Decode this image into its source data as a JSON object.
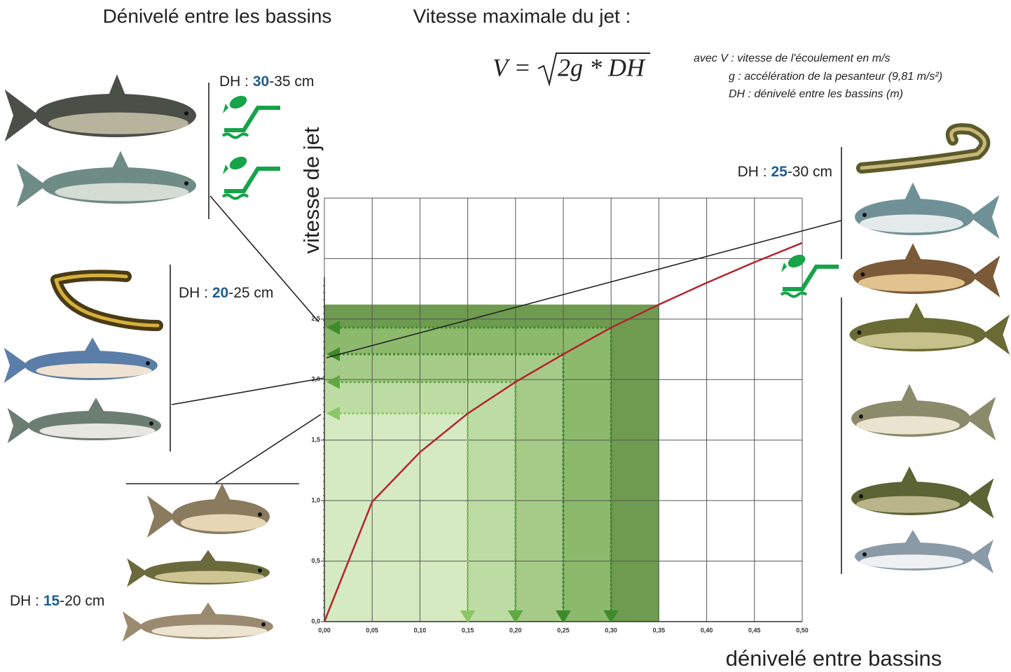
{
  "header": {
    "left_title": "Dénivelé entre les bassins",
    "right_title": "Vitesse maximale du jet :"
  },
  "formula": {
    "lhs": "V =",
    "radicand": "2g * DH"
  },
  "notes": [
    "avec V : vitesse de l'écoulement en m/s",
    "g : accélération de la pesanteur (9,81 m/s²)",
    "DH : dénivelé entre les bassins (m)"
  ],
  "groups": [
    {
      "prefix": "DH : ",
      "low": "30",
      "rest": "-35 cm"
    },
    {
      "prefix": "DH : ",
      "low": "20",
      "rest": "-25 cm"
    },
    {
      "prefix": "DH : ",
      "low": "15",
      "rest": "-20 cm"
    },
    {
      "prefix": "DH : ",
      "low": "25",
      "rest": "-30 cm"
    }
  ],
  "chart_data": {
    "type": "line",
    "y_label": "vitesse de jet",
    "x_label": "dénivelé entre bassins",
    "x": [
      0,
      0.05,
      0.1,
      0.15,
      0.2,
      0.25,
      0.3,
      0.35,
      0.4,
      0.45,
      0.5
    ],
    "values": [
      0,
      0.99,
      1.4,
      1.72,
      1.98,
      2.21,
      2.43,
      2.62,
      2.8,
      2.97,
      3.13
    ],
    "color": "#b3232b",
    "xlim": [
      0,
      0.5
    ],
    "ylim": [
      0,
      3.5
    ],
    "xticks": [
      {
        "value": 0,
        "label": "0,00"
      },
      {
        "value": 0.05,
        "label": "0,05"
      },
      {
        "value": 0.1,
        "label": "0,10"
      },
      {
        "value": 0.15,
        "label": "0,15"
      },
      {
        "value": 0.2,
        "label": "0,20"
      },
      {
        "value": 0.25,
        "label": "0,25"
      },
      {
        "value": 0.3,
        "label": "0,30"
      },
      {
        "value": 0.35,
        "label": "0,35"
      },
      {
        "value": 0.4,
        "label": "0,40"
      },
      {
        "value": 0.45,
        "label": "0,45"
      },
      {
        "value": 0.5,
        "label": "0,50"
      }
    ],
    "yticks": [
      {
        "value": 0,
        "label": "0,0"
      },
      {
        "value": 0.5,
        "label": "0,5"
      },
      {
        "value": 1,
        "label": "1,0"
      },
      {
        "value": 1.5,
        "label": "1,5"
      },
      {
        "value": 2,
        "label": "2,0"
      },
      {
        "value": 2.5,
        "label": "2,5"
      },
      {
        "value": 3,
        "label": null
      },
      {
        "value": 3.5,
        "label": null
      }
    ],
    "grid": true,
    "shade": {
      "x": 0.35,
      "value": 2.62,
      "color": "#6e9b50"
    },
    "guides": {
      "x": [
        0.15,
        0.2,
        0.25,
        0.3
      ],
      "values": [
        1.72,
        1.98,
        2.21,
        2.43
      ],
      "fills": [
        "#d5eac1",
        "#bddca4",
        "#a6cb88",
        "#8cb96c"
      ],
      "colors": [
        "#8cc665",
        "#5fa843",
        "#3f8a2c",
        "#3f8a2c"
      ]
    }
  }
}
